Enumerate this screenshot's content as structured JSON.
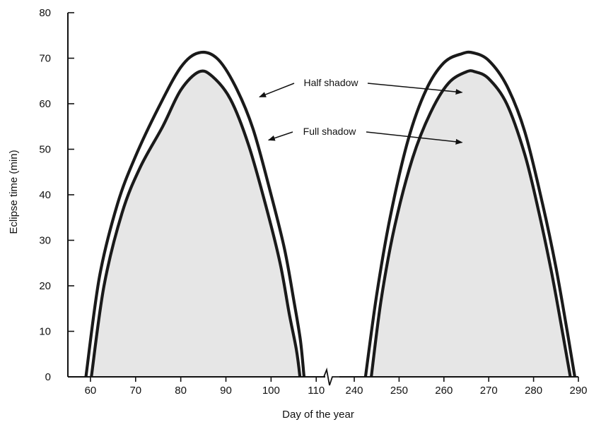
{
  "chart_data": {
    "type": "line",
    "title": "",
    "xlabel": "Day of the year",
    "ylabel": "Eclipse time (min)",
    "ylim": [
      0,
      80
    ],
    "y_ticks": [
      0,
      10,
      20,
      30,
      40,
      50,
      60,
      70,
      80
    ],
    "x_axis_break": true,
    "x_segments": [
      {
        "range": [
          55,
          112
        ],
        "ticks": [
          60,
          70,
          80,
          90,
          100,
          110
        ]
      },
      {
        "range": [
          237,
          290
        ],
        "ticks": [
          240,
          250,
          260,
          270,
          280,
          290
        ]
      }
    ],
    "grid": false,
    "series": [
      {
        "name": "Half shadow",
        "segments": [
          {
            "x": [
              59,
              62,
              66,
              70,
              75,
              80,
              84,
              88,
              92,
              96,
              100,
              103,
              105,
              106.5,
              107.3
            ],
            "y": [
              0,
              22,
              38,
              48.5,
              59,
              68,
              71.2,
              70,
              64,
              54.5,
              40,
              28,
              17,
              8,
              0
            ]
          },
          {
            "x": [
              242.5,
              245,
              248,
              252,
              256,
              260,
              264,
              266.5,
              270,
              274,
              278,
              282,
              285,
              287.5,
              289.2
            ],
            "y": [
              0,
              18,
              35,
              52,
              63,
              69,
              71,
              71.2,
              69.5,
              64,
              54,
              38,
              24,
              10,
              0
            ]
          }
        ]
      },
      {
        "name": "Full shadow",
        "segments": [
          {
            "x": [
              60.2,
              63,
              67,
              71,
              76,
              80,
              84,
              87,
              91,
              95,
              99,
              102,
              104,
              105.6,
              106.4
            ],
            "y": [
              0,
              20,
              36,
              46,
              55,
              63,
              67,
              66,
              61,
              51,
              37,
              25,
              14,
              6,
              0
            ]
          },
          {
            "x": [
              243.8,
              246,
              249,
              253,
              257,
              261,
              265,
              267,
              270,
              274,
              278,
              281,
              284,
              286.6,
              288.2
            ],
            "y": [
              0,
              17,
              33,
              48,
              58,
              64.5,
              67,
              67,
              65.5,
              60,
              49,
              37,
              23,
              9,
              0
            ]
          }
        ]
      }
    ],
    "annotations": [
      {
        "text": "Half shadow",
        "targets": [
          [
            96.5,
            61.5
          ],
          [
            265,
            62.5
          ]
        ]
      },
      {
        "text": "Full shadow",
        "targets": [
          [
            98.5,
            52
          ],
          [
            265,
            51.5
          ]
        ]
      }
    ]
  }
}
